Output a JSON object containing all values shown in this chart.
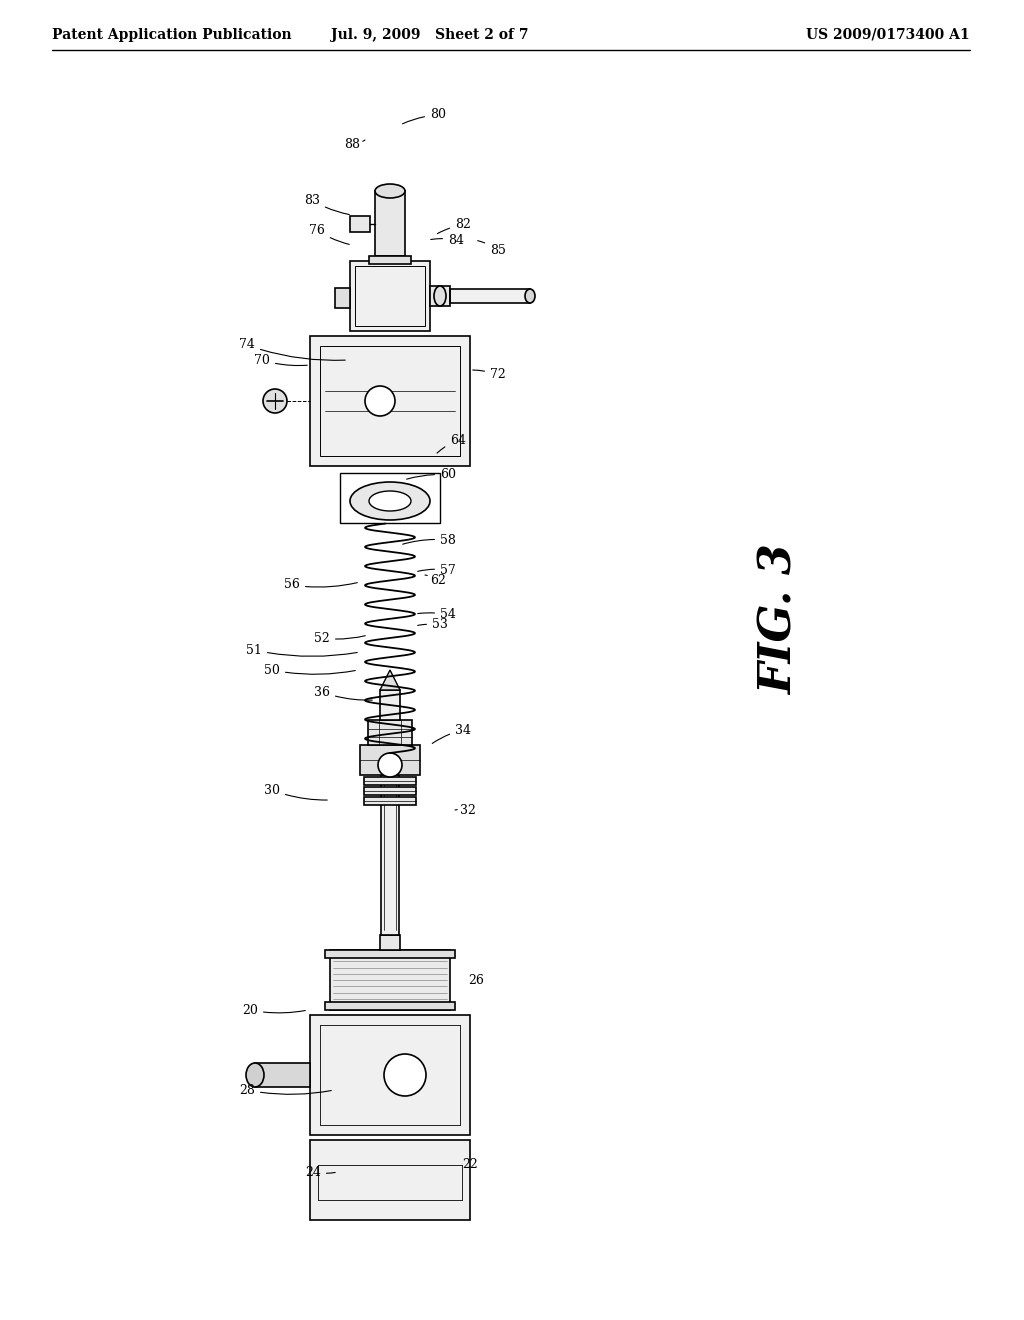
{
  "bg_color": "#ffffff",
  "header_left": "Patent Application Publication",
  "header_mid": "Jul. 9, 2009   Sheet 2 of 7",
  "header_right": "US 2009/0173400 A1",
  "fig_label": "FIG. 3",
  "header_fontsize": 10,
  "fig_label_fontsize": 32
}
